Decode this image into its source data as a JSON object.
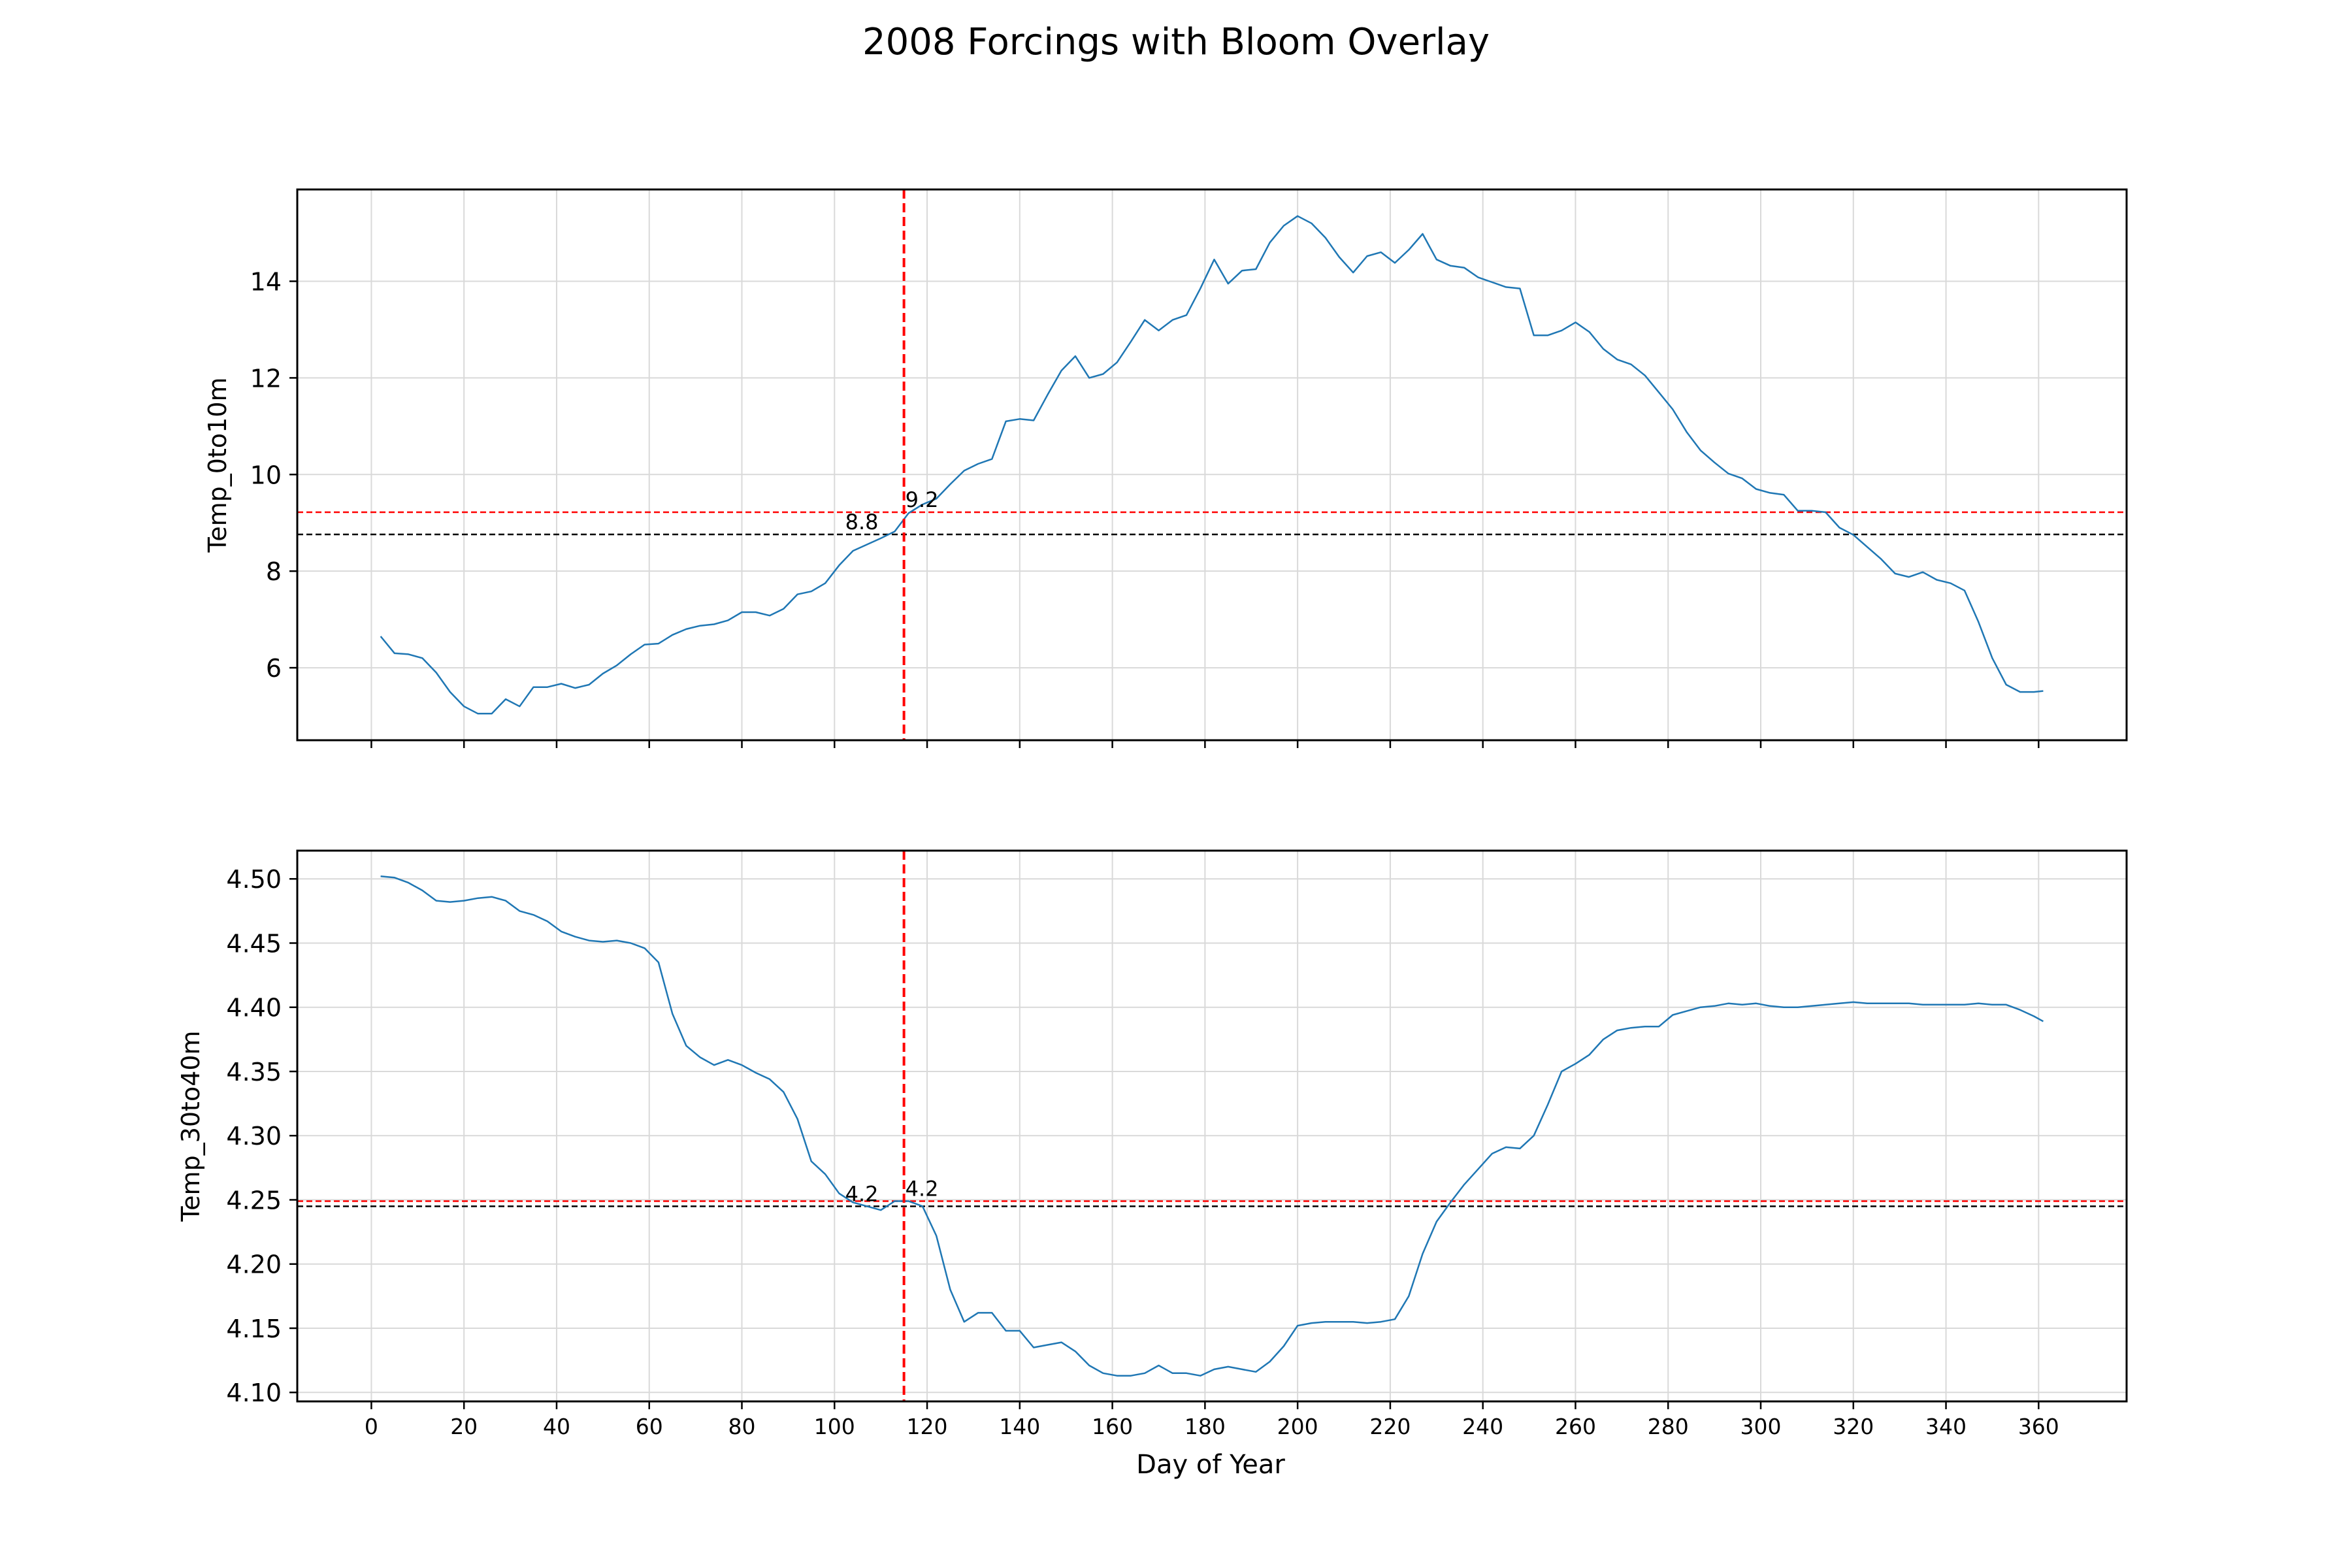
{
  "title": "2008 Forcings with Bloom Overlay",
  "colors": {
    "line": "#1f77b4",
    "bloom": "#ff0000",
    "threshold": "#000000",
    "grid": "#d9d9d9"
  },
  "chart_data": {
    "type": "line",
    "title": "2008 Forcings with Bloom Overlay",
    "xlabel": "Day of Year",
    "x_ticks": [
      0,
      20,
      40,
      60,
      80,
      100,
      120,
      140,
      160,
      180,
      200,
      220,
      240,
      260,
      280,
      300,
      320,
      340,
      360
    ],
    "xlim": [
      -16,
      379
    ],
    "grid": true,
    "bloom_day": 115,
    "panels": [
      {
        "ylabel": "Temp_0to10m",
        "ylim": [
          4.5,
          15.9
        ],
        "yticks": [
          6,
          8,
          10,
          12,
          14
        ],
        "ytick_labels": [
          "6",
          "8",
          "10",
          "12",
          "14"
        ],
        "threshold_black": 8.76,
        "threshold_black_label": "8.8",
        "threshold_red": 9.22,
        "threshold_red_label": "9.2",
        "x": [
          2,
          5,
          8,
          11,
          14,
          17,
          20,
          23,
          26,
          29,
          32,
          35,
          38,
          41,
          44,
          47,
          50,
          53,
          56,
          59,
          62,
          65,
          68,
          71,
          74,
          77,
          80,
          83,
          86,
          89,
          92,
          95,
          98,
          101,
          104,
          107,
          110,
          113,
          116,
          119,
          122,
          125,
          128,
          131,
          134,
          137,
          140,
          143,
          146,
          149,
          152,
          155,
          158,
          161,
          164,
          167,
          170,
          173,
          176,
          179,
          182,
          185,
          188,
          191,
          194,
          197,
          200,
          203,
          206,
          209,
          212,
          215,
          218,
          221,
          224,
          227,
          230,
          233,
          236,
          239,
          242,
          245,
          248,
          251,
          254,
          257,
          260,
          263,
          266,
          269,
          272,
          275,
          278,
          281,
          284,
          287,
          290,
          293,
          296,
          299,
          302,
          305,
          308,
          311,
          314,
          317,
          320,
          323,
          326,
          329,
          332,
          335,
          338,
          341,
          344,
          347,
          350,
          353,
          356,
          359,
          361
        ],
        "values": [
          6.65,
          6.3,
          6.28,
          6.2,
          5.9,
          5.5,
          5.2,
          5.05,
          5.05,
          5.35,
          5.2,
          5.6,
          5.6,
          5.67,
          5.58,
          5.65,
          5.88,
          6.05,
          6.28,
          6.48,
          6.5,
          6.68,
          6.8,
          6.87,
          6.9,
          6.98,
          7.15,
          7.15,
          7.08,
          7.22,
          7.52,
          7.58,
          7.75,
          8.12,
          8.42,
          8.55,
          8.68,
          8.82,
          9.2,
          9.38,
          9.5,
          9.8,
          10.08,
          10.22,
          10.32,
          11.1,
          11.15,
          11.12,
          11.65,
          12.15,
          12.45,
          12.0,
          12.08,
          12.32,
          12.75,
          13.2,
          12.98,
          13.2,
          13.3,
          13.85,
          14.45,
          13.95,
          14.22,
          14.25,
          14.8,
          15.15,
          15.35,
          15.2,
          14.9,
          14.5,
          14.18,
          14.52,
          14.6,
          14.38,
          14.65,
          14.98,
          14.45,
          14.32,
          14.28,
          14.08,
          13.98,
          13.88,
          13.85,
          12.88,
          12.88,
          12.98,
          13.15,
          12.95,
          12.6,
          12.38,
          12.28,
          12.05,
          11.7,
          11.35,
          10.88,
          10.5,
          10.25,
          10.02,
          9.92,
          9.7,
          9.62,
          9.58,
          9.25,
          9.25,
          9.22,
          8.9,
          8.75,
          8.5,
          8.25,
          7.95,
          7.88,
          7.98,
          7.82,
          7.75,
          7.6,
          6.95,
          6.2,
          5.65,
          5.5,
          5.5,
          5.52
        ]
      },
      {
        "ylabel": "Temp_30to40m",
        "ylim": [
          4.093,
          4.522
        ],
        "yticks": [
          4.1,
          4.15,
          4.2,
          4.25,
          4.3,
          4.35,
          4.4,
          4.45,
          4.5
        ],
        "ytick_labels": [
          "4.10",
          "4.15",
          "4.20",
          "4.25",
          "4.30",
          "4.35",
          "4.40",
          "4.45",
          "4.50"
        ],
        "threshold_black": 4.245,
        "threshold_black_label": "4.2",
        "threshold_red": 4.249,
        "threshold_red_label": "4.2",
        "x": [
          2,
          5,
          8,
          11,
          14,
          17,
          20,
          23,
          26,
          29,
          32,
          35,
          38,
          41,
          44,
          47,
          50,
          53,
          56,
          59,
          62,
          65,
          68,
          71,
          74,
          77,
          80,
          83,
          86,
          89,
          92,
          95,
          98,
          101,
          104,
          107,
          110,
          113,
          116,
          119,
          122,
          125,
          128,
          131,
          134,
          137,
          140,
          143,
          146,
          149,
          152,
          155,
          158,
          161,
          164,
          167,
          170,
          173,
          176,
          179,
          182,
          185,
          188,
          191,
          194,
          197,
          200,
          203,
          206,
          209,
          212,
          215,
          218,
          221,
          224,
          227,
          230,
          233,
          236,
          239,
          242,
          245,
          248,
          251,
          254,
          257,
          260,
          263,
          266,
          269,
          272,
          275,
          278,
          281,
          284,
          287,
          290,
          293,
          296,
          299,
          302,
          305,
          308,
          311,
          314,
          317,
          320,
          323,
          326,
          329,
          332,
          335,
          338,
          341,
          344,
          347,
          350,
          353,
          356,
          359,
          361
        ],
        "values": [
          4.502,
          4.501,
          4.497,
          4.491,
          4.483,
          4.482,
          4.483,
          4.485,
          4.486,
          4.483,
          4.475,
          4.472,
          4.467,
          4.459,
          4.455,
          4.452,
          4.451,
          4.452,
          4.45,
          4.446,
          4.435,
          4.395,
          4.37,
          4.361,
          4.355,
          4.359,
          4.355,
          4.349,
          4.344,
          4.334,
          4.313,
          4.28,
          4.27,
          4.255,
          4.248,
          4.245,
          4.242,
          4.249,
          4.249,
          4.245,
          4.222,
          4.18,
          4.155,
          4.162,
          4.162,
          4.148,
          4.148,
          4.135,
          4.137,
          4.139,
          4.132,
          4.121,
          4.115,
          4.113,
          4.113,
          4.115,
          4.121,
          4.115,
          4.115,
          4.113,
          4.118,
          4.12,
          4.118,
          4.116,
          4.124,
          4.136,
          4.152,
          4.154,
          4.155,
          4.155,
          4.155,
          4.154,
          4.155,
          4.157,
          4.175,
          4.208,
          4.233,
          4.248,
          4.262,
          4.274,
          4.286,
          4.291,
          4.29,
          4.3,
          4.324,
          4.35,
          4.356,
          4.363,
          4.375,
          4.382,
          4.384,
          4.385,
          4.385,
          4.394,
          4.397,
          4.4,
          4.401,
          4.403,
          4.402,
          4.403,
          4.401,
          4.4,
          4.4,
          4.401,
          4.402,
          4.403,
          4.404,
          4.403,
          4.403,
          4.403,
          4.403,
          4.402,
          4.402,
          4.402,
          4.402,
          4.403,
          4.402,
          4.402,
          4.398,
          4.393,
          4.389
        ]
      }
    ]
  }
}
